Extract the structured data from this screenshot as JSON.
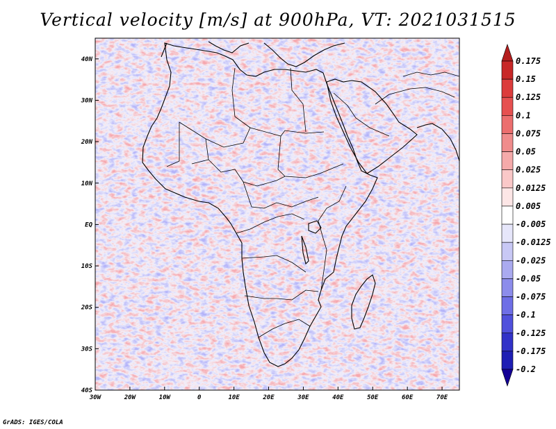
{
  "title": "Vertical velocity [m/s] at 900hPa, VT: 2021031515",
  "footer": "GrADS: IGES/COLA",
  "map": {
    "lon_range": [
      -30,
      75
    ],
    "lat_range": [
      -40,
      45
    ],
    "lon_ticks": [
      "30W",
      "20W",
      "10W",
      "0",
      "10E",
      "20E",
      "30E",
      "40E",
      "50E",
      "60E",
      "70E"
    ],
    "lat_ticks": [
      "40N",
      "30N",
      "20N",
      "10N",
      "EQ",
      "10S",
      "20S",
      "30S",
      "40S"
    ]
  },
  "colorbar": {
    "labels": [
      "0.175",
      "0.15",
      "0.125",
      "0.1",
      "0.075",
      "0.05",
      "0.025",
      "0.0125",
      "0.005",
      "-0.005",
      "-0.0125",
      "-0.025",
      "-0.05",
      "-0.075",
      "-0.1",
      "-0.125",
      "-0.175",
      "-0.2"
    ],
    "colors": [
      "#b41e1e",
      "#c82828",
      "#dc3c3c",
      "#e65050",
      "#ec6e6e",
      "#f08c8c",
      "#f5aaaa",
      "#fac8c8",
      "#fde6e6",
      "#ffffff",
      "#e6e6fa",
      "#c8c8f5",
      "#aaaaf0",
      "#8c8ceb",
      "#6e6ee6",
      "#5050dc",
      "#3232c8",
      "#1e1eb4",
      "#140096"
    ]
  }
}
